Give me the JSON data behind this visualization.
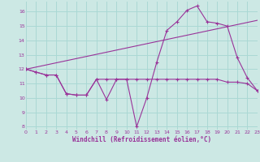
{
  "xlabel": "Windchill (Refroidissement éolien,°C)",
  "bg_color": "#cce8e4",
  "grid_color": "#aad8d4",
  "line_color": "#993399",
  "xlim": [
    0,
    23
  ],
  "ylim": [
    7.8,
    16.7
  ],
  "yticks": [
    8,
    9,
    10,
    11,
    12,
    13,
    14,
    15,
    16
  ],
  "xticks": [
    0,
    1,
    2,
    3,
    4,
    5,
    6,
    7,
    8,
    9,
    10,
    11,
    12,
    13,
    14,
    15,
    16,
    17,
    18,
    19,
    20,
    21,
    22,
    23
  ],
  "curve1_x": [
    0,
    1,
    2,
    3,
    4,
    5,
    6,
    7,
    8,
    9,
    10,
    11,
    12,
    13,
    14,
    15,
    16,
    17,
    18,
    19,
    20,
    21,
    22,
    23
  ],
  "curve1_y": [
    12.0,
    11.8,
    11.6,
    11.6,
    10.3,
    10.2,
    10.2,
    11.3,
    9.9,
    11.3,
    11.3,
    8.0,
    10.0,
    12.5,
    14.7,
    15.3,
    16.1,
    16.4,
    15.3,
    15.2,
    15.0,
    12.8,
    11.4,
    10.5
  ],
  "curve2_x": [
    0,
    1,
    2,
    3,
    4,
    5,
    6,
    7,
    8,
    9,
    10,
    11,
    12,
    13,
    14,
    15,
    16,
    17,
    18,
    19,
    20,
    21,
    22,
    23
  ],
  "curve2_y": [
    12.0,
    11.8,
    11.6,
    11.6,
    10.3,
    10.2,
    10.2,
    11.3,
    11.3,
    11.3,
    11.3,
    11.3,
    11.3,
    11.3,
    11.3,
    11.3,
    11.3,
    11.3,
    11.3,
    11.3,
    11.1,
    11.1,
    11.0,
    10.5
  ],
  "curve3_x": [
    0,
    23
  ],
  "curve3_y": [
    12.0,
    15.4
  ]
}
